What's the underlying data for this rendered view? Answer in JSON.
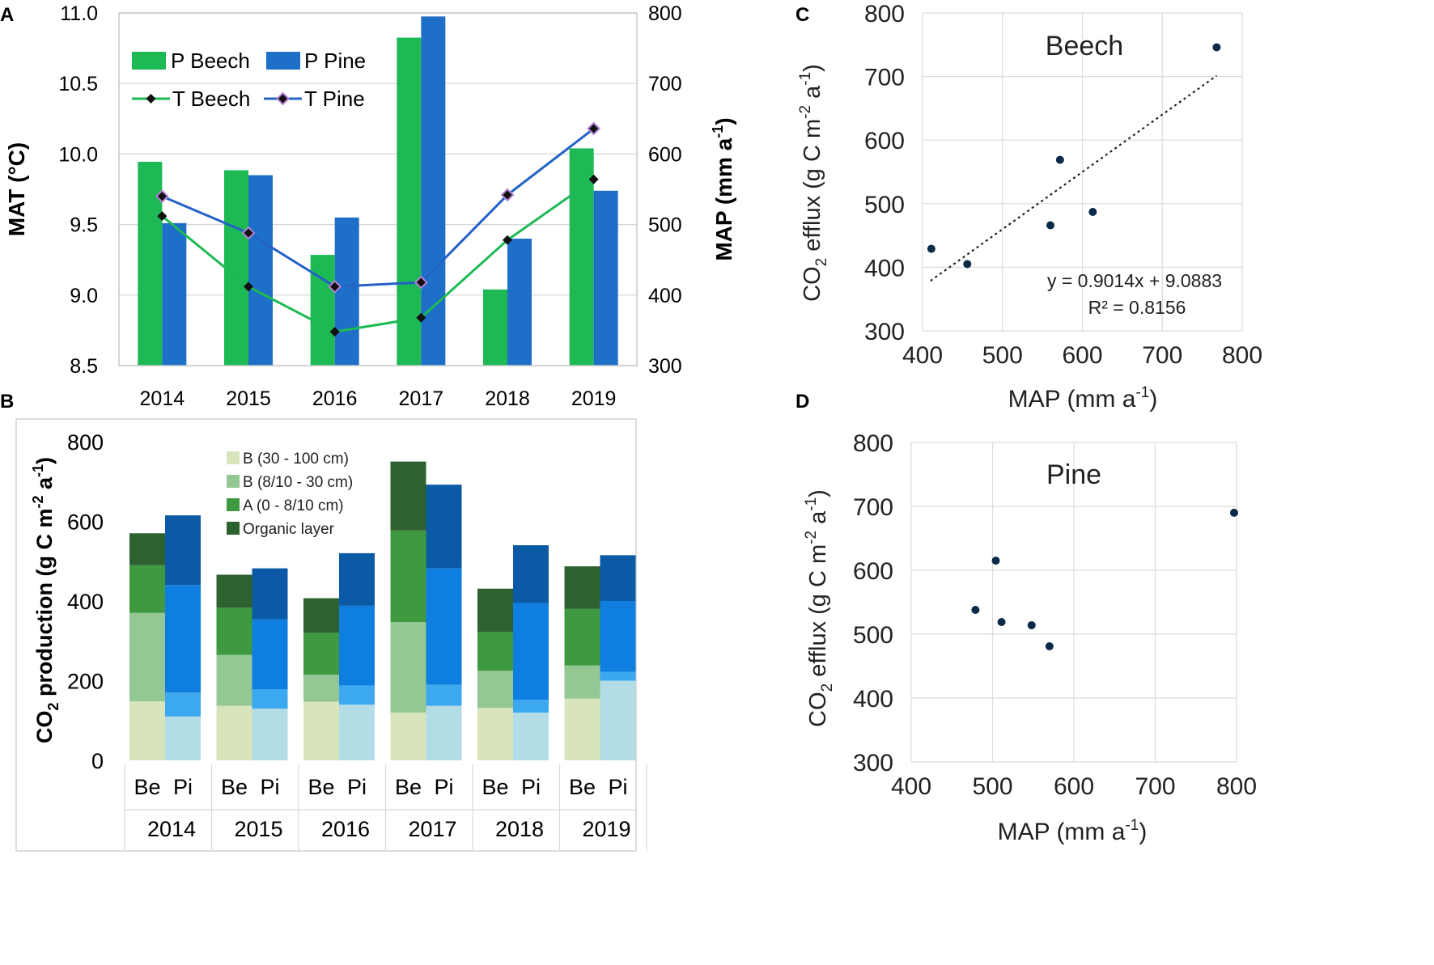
{
  "panel_labels": {
    "a": "A",
    "b": "B",
    "c": "C",
    "d": "D"
  },
  "chart_data": [
    {
      "id": "A",
      "type": "bar",
      "categories": [
        "2014",
        "2015",
        "2016",
        "2017",
        "2018",
        "2019"
      ],
      "series": [
        {
          "name": "P Beech",
          "kind": "bar",
          "axis": "right",
          "color": "#1db954",
          "values": [
            589,
            577,
            457,
            765,
            408,
            608
          ]
        },
        {
          "name": "P Pine",
          "kind": "bar",
          "axis": "right",
          "color": "#1e6fc8",
          "values": [
            502,
            570,
            510,
            795,
            480,
            548
          ]
        },
        {
          "name": "T Beech",
          "kind": "line",
          "axis": "left",
          "color": "#1db954",
          "values": [
            9.56,
            9.06,
            8.74,
            8.84,
            9.39,
            9.82
          ]
        },
        {
          "name": "T Pine",
          "kind": "line",
          "axis": "left",
          "color": "#2462c6",
          "values": [
            9.7,
            9.44,
            9.06,
            9.09,
            9.71,
            10.18
          ]
        }
      ],
      "ylabel": "MAT (°C)",
      "ylabel_right": "MAP (mm a",
      "ylabel_right_sup": "-1",
      "ylabel_right_end": ")",
      "ylim": [
        8.5,
        11.0
      ],
      "ylim_right": [
        300,
        800
      ],
      "yticks": [
        "8.5",
        "9.0",
        "9.5",
        "10.0",
        "10.5",
        "11.0"
      ],
      "yticks_right": [
        "300",
        "400",
        "500",
        "600",
        "700",
        "800"
      ],
      "grid": true,
      "legend_position": "top-left"
    },
    {
      "id": "B",
      "type": "bar",
      "stacked": true,
      "groups": [
        "2014",
        "2015",
        "2016",
        "2017",
        "2018",
        "2019"
      ],
      "sub_labels": [
        "Be",
        "Pi"
      ],
      "layers": [
        "B (30 - 100 cm)",
        "B (8/10 - 30 cm)",
        "A (0 - 8/10 cm)",
        "Organic layer"
      ],
      "colors": {
        "beech": [
          "#d8e4bc",
          "#93c794",
          "#3f9940",
          "#2e6130"
        ],
        "pine": [
          "#b2dce6",
          "#3ba8f0",
          "#0e7fe0",
          "#0b5aa6"
        ]
      },
      "values": {
        "beech": [
          [
            148,
            222,
            120,
            80
          ],
          [
            137,
            128,
            118,
            83
          ],
          [
            147,
            68,
            105,
            87
          ],
          [
            120,
            227,
            230,
            173
          ],
          [
            132,
            93,
            97,
            109
          ],
          [
            155,
            83,
            142,
            107
          ]
        ],
        "pine": [
          [
            110,
            60,
            270,
            175
          ],
          [
            130,
            48,
            176,
            128
          ],
          [
            140,
            48,
            200,
            132
          ],
          [
            137,
            53,
            292,
            210
          ],
          [
            120,
            32,
            243,
            145
          ],
          [
            200,
            22,
            178,
            115
          ]
        ]
      },
      "ylabel_pre": "CO",
      "ylabel_sub": "2",
      "ylabel_mid": " production (g C m",
      "ylabel_sup1": "-2",
      "ylabel_mid2": " a",
      "ylabel_sup2": "-1",
      "ylabel_end": ")",
      "ylim": [
        0,
        800
      ],
      "yticks": [
        "0",
        "200",
        "400",
        "600",
        "800"
      ],
      "legend_position": "top-center"
    },
    {
      "id": "C",
      "type": "scatter",
      "annotation": "Beech",
      "x": [
        411,
        456,
        560,
        572,
        613,
        768
      ],
      "y": [
        429,
        405,
        466,
        569,
        487,
        746
      ],
      "trend": {
        "slope": 0.9014,
        "intercept": 9.0883,
        "x_from": 410,
        "x_to": 768
      },
      "equation": "y = 0.9014x + 9.0883",
      "r2": "R² = 0.8156",
      "xlim": [
        400,
        800
      ],
      "ylim": [
        300,
        800
      ],
      "xticks": [
        "400",
        "500",
        "600",
        "700",
        "800"
      ],
      "yticks": [
        "300",
        "400",
        "500",
        "600",
        "700",
        "800"
      ],
      "xlabel": "MAP (mm a",
      "xlabel_sup": "-1",
      "xlabel_end": ")",
      "ylabel_pre": "CO",
      "ylabel_sub": "2",
      "ylabel_mid": " efflux (g C m",
      "ylabel_sup1": "-2",
      "ylabel_mid2": " a",
      "ylabel_sup2": "-1",
      "ylabel_end": ")"
    },
    {
      "id": "D",
      "type": "scatter",
      "annotation": "Pine",
      "x": [
        479,
        504,
        511,
        548,
        570,
        797
      ],
      "y": [
        538,
        615,
        519,
        514,
        481,
        690
      ],
      "xlim": [
        400,
        800
      ],
      "ylim": [
        300,
        800
      ],
      "xticks": [
        "400",
        "500",
        "600",
        "700",
        "800"
      ],
      "yticks": [
        "300",
        "400",
        "500",
        "600",
        "700",
        "800"
      ],
      "xlabel": "MAP (mm a",
      "xlabel_sup": "-1",
      "xlabel_end": ")",
      "ylabel_pre": "CO",
      "ylabel_sub": "2",
      "ylabel_mid": " efflux (g C m",
      "ylabel_sup1": "-2",
      "ylabel_mid2": " a",
      "ylabel_sup2": "-1",
      "ylabel_end": ")"
    }
  ]
}
